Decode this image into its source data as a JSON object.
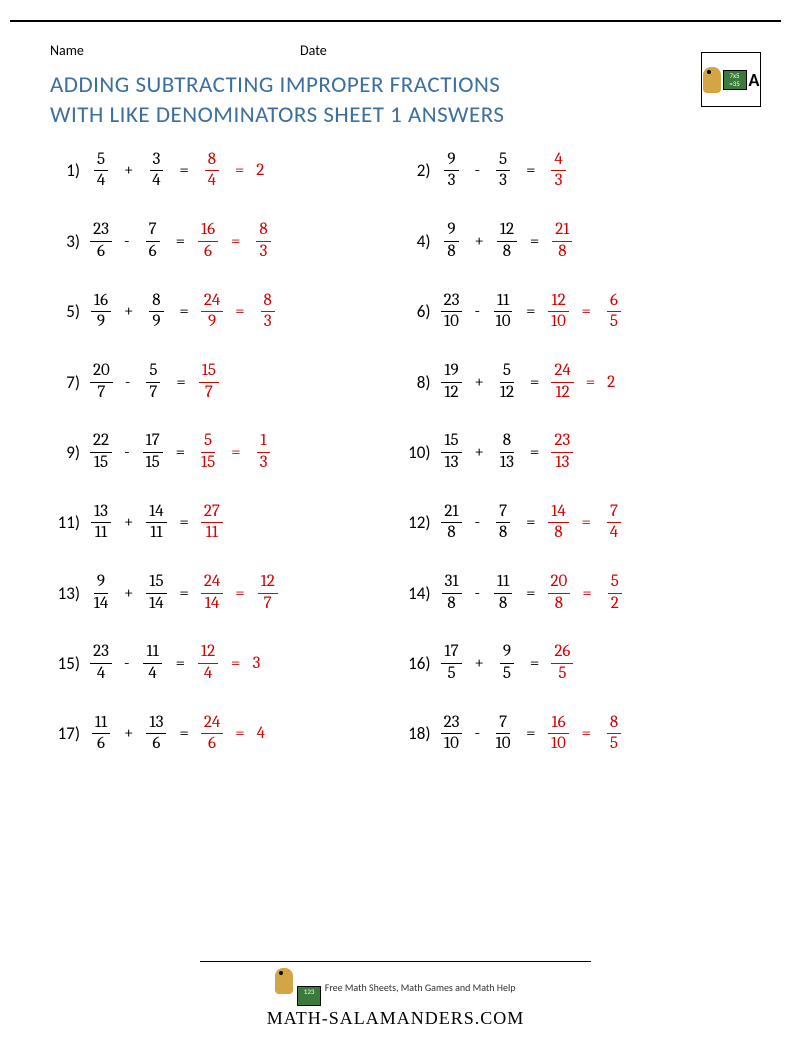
{
  "header": {
    "name_label": "Name",
    "date_label": "Date"
  },
  "title_line1": "ADDING SUBTRACTING IMPROPER FRACTIONS",
  "title_line2": "WITH LIKE DENOMINATORS SHEET 1 ANSWERS",
  "colors": {
    "title": "#3b6fa0",
    "answer": "#d90000",
    "text": "#000000",
    "background": "#ffffff"
  },
  "logo": {
    "board_text": "7x5\n=35"
  },
  "problems": [
    {
      "n": "1)",
      "a": {
        "t": "5",
        "b": "4"
      },
      "op": "+",
      "c": {
        "t": "3",
        "b": "4"
      },
      "r1": {
        "t": "8",
        "b": "4"
      },
      "r2": "2",
      "r2_type": "whole"
    },
    {
      "n": "2)",
      "a": {
        "t": "9",
        "b": "3"
      },
      "op": "-",
      "c": {
        "t": "5",
        "b": "3"
      },
      "r1": {
        "t": "4",
        "b": "3"
      }
    },
    {
      "n": "3)",
      "a": {
        "t": "23",
        "b": "6"
      },
      "op": "-",
      "c": {
        "t": "7",
        "b": "6"
      },
      "r1": {
        "t": "16",
        "b": "6"
      },
      "r2": {
        "t": "8",
        "b": "3"
      }
    },
    {
      "n": "4)",
      "a": {
        "t": "9",
        "b": "8"
      },
      "op": "+",
      "c": {
        "t": "12",
        "b": "8"
      },
      "r1": {
        "t": "21",
        "b": "8"
      }
    },
    {
      "n": "5)",
      "a": {
        "t": "16",
        "b": "9"
      },
      "op": "+",
      "c": {
        "t": "8",
        "b": "9"
      },
      "r1": {
        "t": "24",
        "b": "9"
      },
      "r2": {
        "t": "8",
        "b": "3"
      }
    },
    {
      "n": "6)",
      "a": {
        "t": "23",
        "b": "10"
      },
      "op": "-",
      "c": {
        "t": "11",
        "b": "10"
      },
      "r1": {
        "t": "12",
        "b": "10"
      },
      "r2": {
        "t": "6",
        "b": "5"
      }
    },
    {
      "n": "7)",
      "a": {
        "t": "20",
        "b": "7"
      },
      "op": "-",
      "c": {
        "t": "5",
        "b": "7"
      },
      "r1": {
        "t": "15",
        "b": "7"
      }
    },
    {
      "n": "8)",
      "a": {
        "t": "19",
        "b": "12"
      },
      "op": "+",
      "c": {
        "t": "5",
        "b": "12"
      },
      "r1": {
        "t": "24",
        "b": "12"
      },
      "r2": "2",
      "r2_type": "whole"
    },
    {
      "n": "9)",
      "a": {
        "t": "22",
        "b": "15"
      },
      "op": "-",
      "c": {
        "t": "17",
        "b": "15"
      },
      "r1": {
        "t": "5",
        "b": "15"
      },
      "r2": {
        "t": "1",
        "b": "3"
      }
    },
    {
      "n": "10)",
      "a": {
        "t": "15",
        "b": "13"
      },
      "op": "+",
      "c": {
        "t": "8",
        "b": "13"
      },
      "r1": {
        "t": "23",
        "b": "13"
      }
    },
    {
      "n": "11)",
      "a": {
        "t": "13",
        "b": "11"
      },
      "op": "+",
      "c": {
        "t": "14",
        "b": "11"
      },
      "r1": {
        "t": "27",
        "b": "11"
      }
    },
    {
      "n": "12)",
      "a": {
        "t": "21",
        "b": "8"
      },
      "op": "-",
      "c": {
        "t": "7",
        "b": "8"
      },
      "r1": {
        "t": "14",
        "b": "8"
      },
      "r2": {
        "t": "7",
        "b": "4"
      }
    },
    {
      "n": "13)",
      "a": {
        "t": "9",
        "b": "14"
      },
      "op": "+",
      "c": {
        "t": "15",
        "b": "14"
      },
      "r1": {
        "t": "24",
        "b": "14"
      },
      "r2": {
        "t": "12",
        "b": "7"
      }
    },
    {
      "n": "14)",
      "a": {
        "t": "31",
        "b": "8"
      },
      "op": "-",
      "c": {
        "t": "11",
        "b": "8"
      },
      "r1": {
        "t": "20",
        "b": "8"
      },
      "r2": {
        "t": "5",
        "b": "2"
      }
    },
    {
      "n": "15)",
      "a": {
        "t": "23",
        "b": "4"
      },
      "op": "-",
      "c": {
        "t": "11",
        "b": "4"
      },
      "r1": {
        "t": "12",
        "b": "4"
      },
      "r2": "3",
      "r2_type": "whole"
    },
    {
      "n": "16)",
      "a": {
        "t": "17",
        "b": "5"
      },
      "op": "+",
      "c": {
        "t": "9",
        "b": "5"
      },
      "r1": {
        "t": "26",
        "b": "5"
      }
    },
    {
      "n": "17)",
      "a": {
        "t": "11",
        "b": "6"
      },
      "op": "+",
      "c": {
        "t": "13",
        "b": "6"
      },
      "r1": {
        "t": "24",
        "b": "6"
      },
      "r2": "4",
      "r2_type": "whole"
    },
    {
      "n": "18)",
      "a": {
        "t": "23",
        "b": "10"
      },
      "op": "-",
      "c": {
        "t": "7",
        "b": "10"
      },
      "r1": {
        "t": "16",
        "b": "10"
      },
      "r2": {
        "t": "8",
        "b": "5"
      }
    }
  ],
  "footer": {
    "text": "Free Math Sheets, Math Games and Math Help",
    "brand": "MATH-SALAMANDERS.COM"
  }
}
